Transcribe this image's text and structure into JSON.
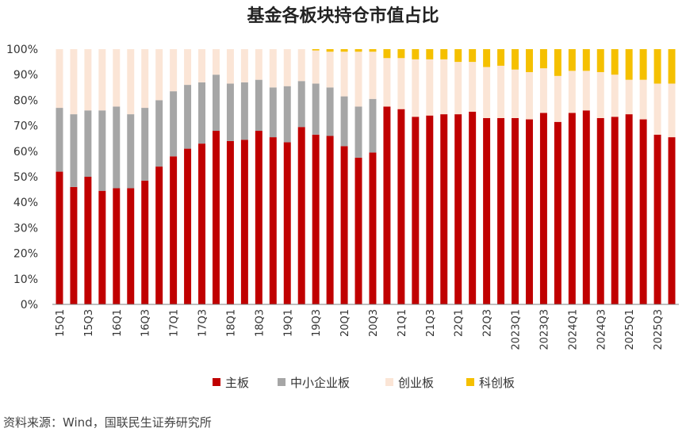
{
  "chart_data": {
    "type": "bar",
    "stacked": true,
    "title": "基金各板块持仓市值占比",
    "source": "资料来源：Wind，国联民生证券研究所",
    "ylim": [
      0,
      100
    ],
    "y_ticks": [
      "0%",
      "10%",
      "20%",
      "30%",
      "40%",
      "50%",
      "60%",
      "70%",
      "80%",
      "90%",
      "100%"
    ],
    "legend_position": "bottom",
    "categories": [
      "15Q1",
      "15Q2",
      "15Q3",
      "15Q4",
      "16Q1",
      "16Q2",
      "16Q3",
      "16Q4",
      "17Q1",
      "17Q2",
      "17Q3",
      "17Q4",
      "18Q1",
      "18Q2",
      "18Q3",
      "18Q4",
      "19Q1",
      "19Q2",
      "19Q3",
      "19Q4",
      "20Q1",
      "20Q2",
      "20Q3",
      "20Q4",
      "21Q1",
      "21Q2",
      "21Q3",
      "21Q4",
      "22Q1",
      "22Q2",
      "22Q3",
      "22Q4",
      "2023Q1",
      "2023Q2",
      "2023Q3",
      "2023Q4",
      "2024Q1",
      "2024Q2",
      "2024Q3",
      "2024Q4",
      "2025Q1",
      "2025Q2",
      "2025Q3",
      "2025Q4"
    ],
    "x_tick_labels": [
      "15Q1",
      "",
      "15Q3",
      "",
      "16Q1",
      "",
      "16Q3",
      "",
      "17Q1",
      "",
      "17Q3",
      "",
      "18Q1",
      "",
      "18Q3",
      "",
      "19Q1",
      "",
      "19Q3",
      "",
      "20Q1",
      "",
      "20Q3",
      "",
      "21Q1",
      "",
      "21Q3",
      "",
      "22Q1",
      "",
      "22Q3",
      "",
      "2023Q1",
      "",
      "2023Q3",
      "",
      "2024Q1",
      "",
      "2024Q3",
      "",
      "2025Q1",
      "",
      "2025Q3",
      ""
    ],
    "series": [
      {
        "name": "主板",
        "color": "#c00000",
        "values": [
          52,
          46,
          50,
          44.5,
          45.5,
          45.5,
          48.5,
          54,
          58,
          61,
          63,
          68,
          64,
          64.5,
          68,
          65.5,
          63.5,
          69.5,
          66.5,
          66,
          62,
          57.5,
          59.5,
          77.5,
          76.5,
          73.5,
          74,
          74.5,
          74.5,
          75.5,
          73,
          73,
          73,
          72.5,
          75,
          71.5,
          75,
          76,
          73,
          73.5,
          74.5,
          72.5,
          66.5,
          65.5
        ]
      },
      {
        "name": "中小企业板",
        "color": "#a6a6a6",
        "values": [
          25,
          28.5,
          26,
          31.5,
          32,
          29,
          28.5,
          26,
          25.5,
          25,
          24,
          22,
          22.5,
          22.5,
          20,
          19.5,
          22,
          18,
          20,
          19,
          19.5,
          20,
          21,
          0,
          0,
          0,
          0,
          0,
          0,
          0,
          0,
          0,
          0,
          0,
          0,
          0,
          0,
          0,
          0,
          0,
          0,
          0,
          0,
          0
        ]
      },
      {
        "name": "创业板",
        "color": "#fbe5d6",
        "values": [
          23,
          25.5,
          24,
          24,
          22.5,
          25.5,
          23,
          20,
          16.5,
          14,
          13,
          10,
          13.5,
          13,
          12,
          15,
          14.5,
          12.5,
          13,
          14,
          17.5,
          21.5,
          18.5,
          19,
          20,
          22.5,
          22,
          21.5,
          20.5,
          19.5,
          20,
          20.5,
          19,
          18.5,
          17.5,
          18,
          16.5,
          15.5,
          18,
          16.5,
          13.5,
          15.5,
          20,
          21
        ]
      },
      {
        "name": "科创板",
        "color": "#f5c000",
        "values": [
          0,
          0,
          0,
          0,
          0,
          0,
          0,
          0,
          0,
          0,
          0,
          0,
          0,
          0,
          0,
          0,
          0,
          0,
          0.5,
          1,
          1,
          1,
          1,
          3.5,
          3.5,
          4,
          4,
          4,
          5,
          5,
          7,
          6.5,
          8,
          9,
          7.5,
          10.5,
          8.5,
          8.5,
          9,
          10,
          12,
          12,
          13.5,
          13.5
        ]
      }
    ]
  }
}
